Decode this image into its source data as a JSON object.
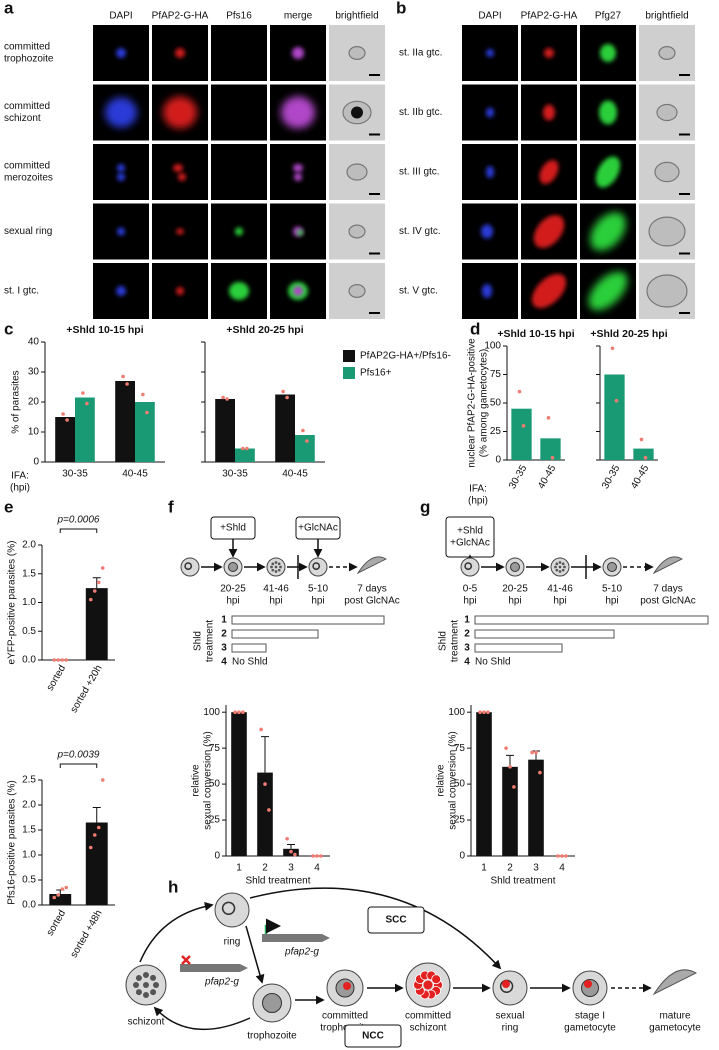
{
  "panel_labels": [
    "a",
    "b",
    "c",
    "d",
    "e",
    "f",
    "g",
    "h"
  ],
  "panel_a": {
    "columns": [
      "DAPI",
      "PfAP2-G-HA",
      "Pfs16",
      "merge",
      "brightfield"
    ],
    "rows": [
      [
        "committed",
        "trophozoite"
      ],
      [
        "committed",
        "schizont"
      ],
      [
        "committed",
        "merozoites"
      ],
      [
        "sexual ring"
      ],
      [
        "st. I gtc."
      ]
    ]
  },
  "panel_b": {
    "columns": [
      "DAPI",
      "PfAP2-G-HA",
      "Pfg27",
      "brightfield"
    ],
    "rows": [
      [
        "st. IIa gtc."
      ],
      [
        "st. IIb gtc."
      ],
      [
        "st. III gtc."
      ],
      [
        "st. IV gtc."
      ],
      [
        "st. V gtc."
      ]
    ]
  },
  "panel_f": {
    "boxes": [
      [
        "+Shld"
      ],
      [
        "+GlcNAc"
      ]
    ],
    "times": [
      [
        "20-25",
        "hpi"
      ],
      [
        "41-46",
        "hpi"
      ],
      [
        "5-10",
        "hpi"
      ],
      [
        "7 days",
        "post GlcNAc"
      ]
    ],
    "treatment_label": [
      "Shld",
      "treatment"
    ],
    "treatments": [
      "1",
      "2",
      "3",
      "4"
    ],
    "no_shld": "No Shld"
  },
  "panel_g": {
    "boxes": [
      [
        "+Shld",
        "+GlcNAc"
      ]
    ],
    "times": [
      [
        "0-5",
        "hpi"
      ],
      [
        "20-25",
        "hpi"
      ],
      [
        "41-46",
        "hpi"
      ],
      [
        "5-10",
        "hpi"
      ],
      [
        "7 days",
        "post GlcNAc"
      ]
    ],
    "treatment_label": [
      "Shld",
      "treatment"
    ],
    "treatments": [
      "1",
      "2",
      "3",
      "4"
    ],
    "no_shld": "No Shld"
  },
  "panel_h": {
    "ring": "ring",
    "schizont": "schizont",
    "trophozoite": "trophozoite",
    "gene_on": "pfap2-g",
    "gene_off": "pfap2-g",
    "committed_trophozoite": [
      "committed",
      "trophozoite"
    ],
    "committed_schizont": [
      "committed",
      "schizont"
    ],
    "sexual_ring": [
      "sexual",
      "ring"
    ],
    "stage_i": [
      "stage I",
      "gametocyte"
    ],
    "mature": [
      "mature",
      "gametocyte"
    ],
    "scc": "SCC",
    "ncc": "NCC"
  },
  "chart_data": [
    {
      "type": "bar",
      "title": "+Shld 10-15 hpi",
      "ylabel": "% of parasites",
      "xlabel": [
        "IFA:",
        "(hpi)"
      ],
      "categories": [
        "30-35",
        "40-45"
      ],
      "series": [
        {
          "name": "PfAP2G-HA+/Pfs16-",
          "color": "#111111",
          "values": [
            15,
            27
          ],
          "points": [
            [
              16,
              14
            ],
            [
              28.5,
              26
            ]
          ]
        },
        {
          "name": "Pfs16+",
          "color": "#1a9a74",
          "values": [
            21.5,
            20
          ],
          "points": [
            [
              23,
              19.5
            ],
            [
              22.5,
              16.5
            ]
          ]
        }
      ],
      "ylim": [
        0,
        40
      ],
      "yticks": [
        0,
        10,
        20,
        30,
        40
      ],
      "point_color": "#f07c72"
    },
    {
      "type": "bar",
      "title": "+Shld 20-25 hpi",
      "categories": [
        "30-35",
        "40-45"
      ],
      "series": [
        {
          "color": "#111111",
          "values": [
            21,
            22.5
          ],
          "points": [
            [
              21.5,
              21
            ],
            [
              23.5,
              21.5
            ]
          ]
        },
        {
          "color": "#1a9a74",
          "values": [
            4.5,
            9
          ],
          "points": [
            [
              4.5,
              4.5
            ],
            [
              10.5,
              7
            ]
          ]
        }
      ],
      "ylim": [
        0,
        40
      ],
      "yticks": [
        0,
        10,
        20,
        30,
        40
      ],
      "point_color": "#f07c72"
    },
    {
      "type": "bar",
      "title": "+Shld 10-15 hpi",
      "ylabel": [
        "nuclear PfAP2-G-HA-positive",
        "(% among gametocytes)"
      ],
      "xlabel": [
        "IFA:",
        "(hpi)"
      ],
      "categories": [
        "30-35",
        "40-45"
      ],
      "values": [
        45,
        19
      ],
      "color": "#1a9a74",
      "points": [
        [
          60,
          30
        ],
        [
          37,
          2
        ]
      ],
      "ylim": [
        0,
        100
      ],
      "yticks": [
        0,
        25,
        50,
        75,
        100
      ],
      "point_color": "#f07c72"
    },
    {
      "type": "bar",
      "title": "+Shld 20-25 hpi",
      "categories": [
        "30-35",
        "40-45"
      ],
      "values": [
        75,
        10
      ],
      "color": "#1a9a74",
      "points": [
        [
          98,
          52
        ],
        [
          18,
          2
        ]
      ],
      "ylim": [
        0,
        100
      ],
      "yticks": [
        0,
        25,
        50,
        75,
        100
      ],
      "point_color": "#f07c72"
    },
    {
      "type": "bar",
      "ylabel": "eYFP-positive parasites (%)",
      "annotation": "p=0.0006",
      "categories": [
        "sorted",
        "sorted +20h"
      ],
      "values": [
        0,
        1.25
      ],
      "errors": [
        0,
        0.18
      ],
      "color": "#111111",
      "points": [
        [
          0,
          0,
          0,
          0
        ],
        [
          1.05,
          1.2,
          1.35,
          1.6
        ]
      ],
      "point_color": "#f07c72",
      "ylim": [
        0,
        2
      ],
      "yticks": [
        {
          "value": 0,
          "label": "0.0"
        },
        0.5,
        {
          "value": 1,
          "label": "1.0"
        },
        1.5,
        {
          "value": 2,
          "label": "2.0"
        }
      ]
    },
    {
      "type": "bar",
      "ylabel": "Pfs16-positive parasites (%)",
      "annotation": "p=0.0039",
      "categories": [
        "sorted",
        "sorted +48h"
      ],
      "values": [
        0.22,
        1.65
      ],
      "errors": [
        0.08,
        0.3
      ],
      "color": "#111111",
      "points": [
        [
          0.15,
          0.2,
          0.32,
          0.35
        ],
        [
          1.15,
          1.4,
          1.55,
          2.5
        ]
      ],
      "point_color": "#f07c72",
      "ylim": [
        0,
        2.5
      ],
      "yticks": [
        {
          "value": 0,
          "label": "0.0"
        },
        0.5,
        {
          "value": 1,
          "label": "1.0"
        },
        1.5,
        {
          "value": 2,
          "label": "2.0"
        },
        2.5
      ]
    },
    {
      "type": "bar",
      "ylabel": [
        "relative",
        "sexual conversion (%)"
      ],
      "xlabel": "Shld treatment",
      "categories": [
        "1",
        "2",
        "3",
        "4"
      ],
      "values": [
        100,
        58,
        5,
        0
      ],
      "errors": [
        0,
        25,
        3,
        0
      ],
      "color": "#111111",
      "points": [
        [
          100,
          100,
          100
        ],
        [
          88,
          50,
          32
        ],
        [
          12,
          3,
          1
        ],
        [
          0,
          0,
          0
        ]
      ],
      "point_color": "#f07c72",
      "ylim": [
        0,
        105
      ],
      "yticks": [
        0,
        25,
        50,
        75,
        100
      ]
    },
    {
      "type": "bar",
      "ylabel": [
        "relative",
        "sexual conversion (%)"
      ],
      "xlabel": "Shld treatment",
      "categories": [
        "1",
        "2",
        "3",
        "4"
      ],
      "values": [
        100,
        62,
        67,
        0
      ],
      "errors": [
        0,
        8,
        6,
        0
      ],
      "color": "#111111",
      "points": [
        [
          100,
          100,
          100
        ],
        [
          75,
          62,
          48
        ],
        [
          72,
          72,
          58
        ],
        [
          0,
          0,
          0
        ]
      ],
      "point_color": "#f07c72",
      "ylim": [
        0,
        105
      ],
      "yticks": [
        0,
        25,
        50,
        75,
        100
      ]
    }
  ]
}
